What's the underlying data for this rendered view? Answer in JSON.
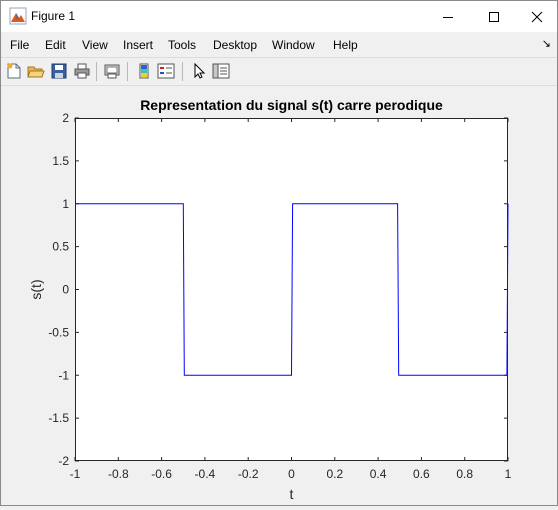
{
  "window": {
    "title": "Figure 1"
  },
  "menu": {
    "items": [
      "File",
      "Edit",
      "View",
      "Insert",
      "Tools",
      "Desktop",
      "Window",
      "Help"
    ]
  },
  "icons": {
    "app": "matlab-figure-icon",
    "minimize": "minimize-icon",
    "maximize": "maximize-icon",
    "close": "close-icon",
    "toolbar": [
      "new-figure-icon",
      "open-file-icon",
      "save-icon",
      "print-icon",
      "print-preview-icon",
      "insert-colorbar-icon",
      "insert-legend-icon",
      "pointer-icon",
      "property-editor-icon"
    ]
  },
  "chart_data": {
    "type": "line",
    "title": "Representation du signal s(t) carre perodique",
    "xlabel": "t",
    "ylabel": "s(t)",
    "xlim": [
      -1,
      1
    ],
    "ylim": [
      -2,
      2
    ],
    "xticks": [
      "-1",
      "-0.8",
      "-0.6",
      "-0.4",
      "-0.2",
      "0",
      "0.2",
      "0.4",
      "0.6",
      "0.8",
      "1"
    ],
    "yticks": [
      "2",
      "1.5",
      "1",
      "0.5",
      "0",
      "-0.5",
      "-1",
      "-1.5",
      "-2"
    ],
    "grid": false,
    "line_color": "#0000ff",
    "series": [
      {
        "x": [
          -1,
          -0.5,
          -0.495,
          0,
          0.005,
          0.49,
          0.495,
          0.995,
          1
        ],
        "y": [
          1,
          1,
          -1,
          -1,
          1,
          1,
          -1,
          -1,
          1
        ]
      }
    ]
  }
}
